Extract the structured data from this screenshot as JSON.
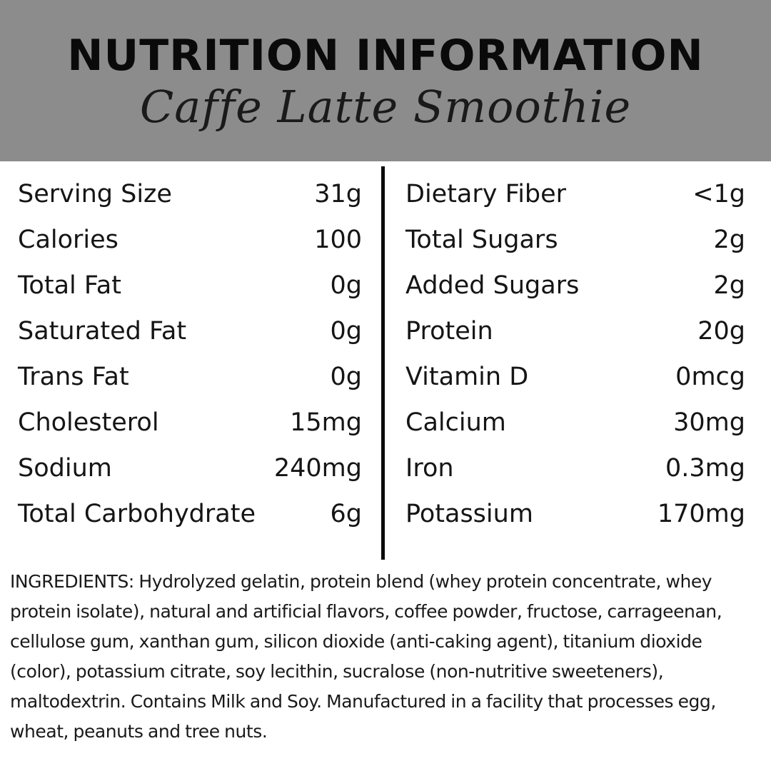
{
  "header": {
    "title": "NUTRITION INFORMATION",
    "subtitle": "Caffe Latte Smoothie"
  },
  "left_rows": [
    {
      "label": "Serving Size",
      "value": "31g"
    },
    {
      "label": "Calories",
      "value": "100"
    },
    {
      "label": "Total Fat",
      "value": "0g"
    },
    {
      "label": "Saturated Fat",
      "value": "0g"
    },
    {
      "label": "Trans Fat",
      "value": "0g"
    },
    {
      "label": "Cholesterol",
      "value": "15mg"
    },
    {
      "label": "Sodium",
      "value": "240mg"
    },
    {
      "label": "Total Carbohydrate",
      "value": "6g"
    }
  ],
  "right_rows": [
    {
      "label": "Dietary Fiber",
      "value": "<1g"
    },
    {
      "label": "Total Sugars",
      "value": "2g"
    },
    {
      "label": "Added Sugars",
      "value": "2g"
    },
    {
      "label": "Protein",
      "value": "20g"
    },
    {
      "label": "Vitamin D",
      "value": "0mcg"
    },
    {
      "label": "Calcium",
      "value": "30mg"
    },
    {
      "label": "Iron",
      "value": "0.3mg"
    },
    {
      "label": "Potassium",
      "value": "170mg"
    }
  ],
  "ingredients": "INGREDIENTS: Hydrolyzed gelatin, protein blend (whey protein concentrate, whey protein isolate), natural and artificial flavors, coffee powder, fructose, carrageenan, cellulose gum, xanthan gum, silicon dioxide (anti-caking agent), titanium dioxide (color), potassium citrate, soy lecithin, sucralose (non-nutritive sweeteners), maltodextrin. Contains Milk and Soy. Manufactured in a facility that processes egg, wheat, peanuts and tree nuts.",
  "colors": {
    "header_background": "#8c8c8c",
    "text": "#111111",
    "divider": "#0a0a0a"
  }
}
